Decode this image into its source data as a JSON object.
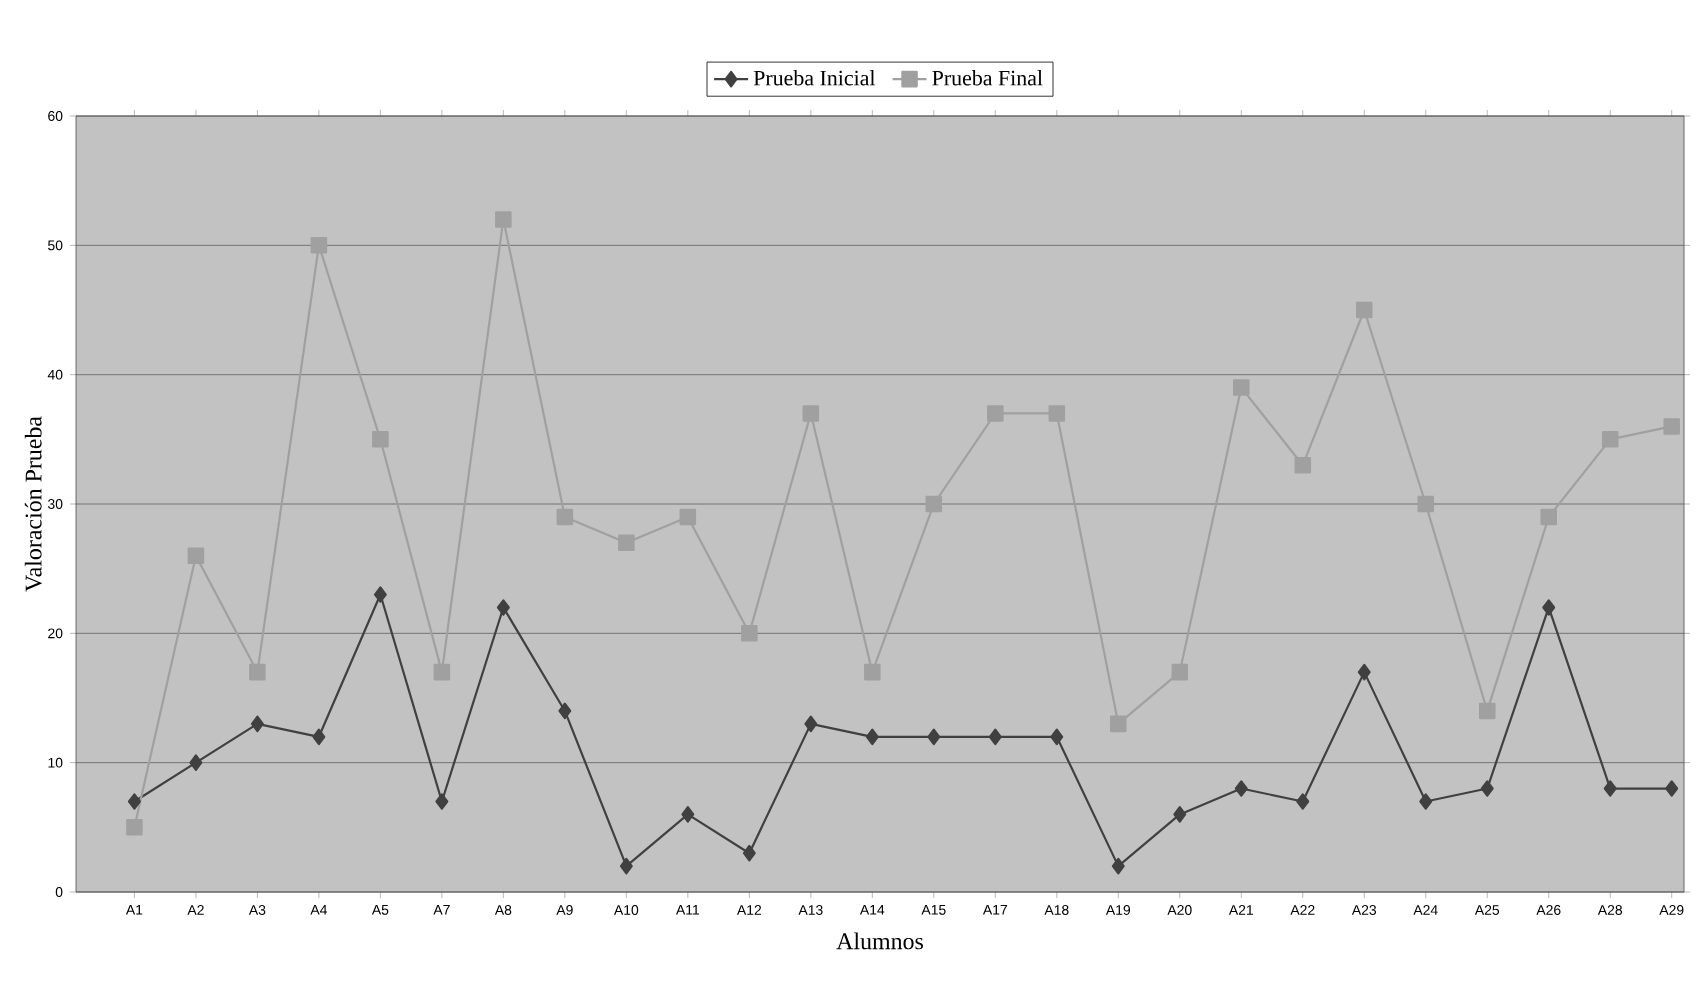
{
  "chart_data": {
    "type": "line",
    "xlabel": "Alumnos",
    "ylabel": "Valoración Prueba",
    "categories": [
      "A1",
      "A2",
      "A3",
      "A4",
      "A5",
      "A7",
      "A8",
      "A9",
      "A10",
      "A11",
      "A12",
      "A13",
      "A14",
      "A15",
      "A17",
      "A18",
      "A19",
      "A20",
      "A21",
      "A22",
      "A23",
      "A24",
      "A25",
      "A26",
      "A28",
      "A29"
    ],
    "series": [
      {
        "name": "Prueba Inicial",
        "color": "#404040",
        "marker": "diamond",
        "values": [
          7,
          10,
          13,
          12,
          23,
          7,
          22,
          14,
          2,
          6,
          3,
          13,
          12,
          12,
          12,
          12,
          2,
          6,
          8,
          7,
          17,
          7,
          8,
          22,
          8,
          8
        ]
      },
      {
        "name": "Prueba Final",
        "color": "#a0a0a0",
        "marker": "square",
        "values": [
          5,
          26,
          17,
          50,
          35,
          17,
          52,
          29,
          27,
          29,
          20,
          37,
          17,
          30,
          37,
          37,
          13,
          17,
          39,
          33,
          45,
          30,
          14,
          29,
          35,
          36
        ]
      }
    ],
    "ylim": [
      0,
      60
    ],
    "yticks": [
      0,
      10,
      20,
      30,
      40,
      50,
      60
    ],
    "grid": "y",
    "legend": "top"
  }
}
